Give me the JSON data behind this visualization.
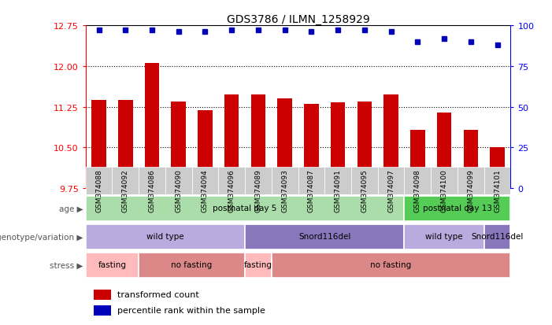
{
  "title": "GDS3786 / ILMN_1258929",
  "samples": [
    "GSM374088",
    "GSM374092",
    "GSM374086",
    "GSM374090",
    "GSM374094",
    "GSM374096",
    "GSM374089",
    "GSM374093",
    "GSM374087",
    "GSM374091",
    "GSM374095",
    "GSM374097",
    "GSM374098",
    "GSM374100",
    "GSM374099",
    "GSM374101"
  ],
  "bar_values": [
    11.38,
    11.38,
    12.05,
    11.35,
    11.19,
    11.48,
    11.47,
    11.4,
    11.3,
    11.33,
    11.35,
    11.47,
    10.83,
    11.15,
    10.82,
    10.5
  ],
  "percentile_values": [
    97,
    97,
    97,
    96,
    96,
    97,
    97,
    97,
    96,
    97,
    97,
    96,
    90,
    92,
    90,
    88
  ],
  "ylim_left": [
    9.75,
    12.75
  ],
  "ylim_right": [
    0,
    100
  ],
  "yticks_left": [
    9.75,
    10.5,
    11.25,
    12.0,
    12.75
  ],
  "yticks_right": [
    0,
    25,
    50,
    75,
    100
  ],
  "bar_color": "#cc0000",
  "dot_color": "#0000bb",
  "bar_baseline": 9.75,
  "age_row": {
    "spans": [
      {
        "label": "postnatal day 5",
        "start": 0,
        "end": 12,
        "color": "#aaddaa"
      },
      {
        "label": "postnatal day 13",
        "start": 12,
        "end": 16,
        "color": "#55cc55"
      }
    ]
  },
  "genotype_row": {
    "spans": [
      {
        "label": "wild type",
        "start": 0,
        "end": 6,
        "color": "#bbaadd"
      },
      {
        "label": "Snord116del",
        "start": 6,
        "end": 12,
        "color": "#8877bb"
      },
      {
        "label": "wild type",
        "start": 12,
        "end": 15,
        "color": "#bbaadd"
      },
      {
        "label": "Snord116del",
        "start": 15,
        "end": 16,
        "color": "#8877bb"
      }
    ]
  },
  "stress_row": {
    "spans": [
      {
        "label": "fasting",
        "start": 0,
        "end": 2,
        "color": "#ffbbbb"
      },
      {
        "label": "no fasting",
        "start": 2,
        "end": 6,
        "color": "#dd8888"
      },
      {
        "label": "fasting",
        "start": 6,
        "end": 7,
        "color": "#ffbbbb"
      },
      {
        "label": "no fasting",
        "start": 7,
        "end": 16,
        "color": "#dd8888"
      }
    ]
  },
  "row_labels": [
    "age",
    "genotype/variation",
    "stress"
  ],
  "legend_items": [
    {
      "color": "#cc0000",
      "label": "transformed count"
    },
    {
      "color": "#0000bb",
      "label": "percentile rank within the sample"
    }
  ],
  "grid_yticks": [
    10.5,
    11.25,
    12.0
  ],
  "xtick_bg_color": "#cccccc"
}
